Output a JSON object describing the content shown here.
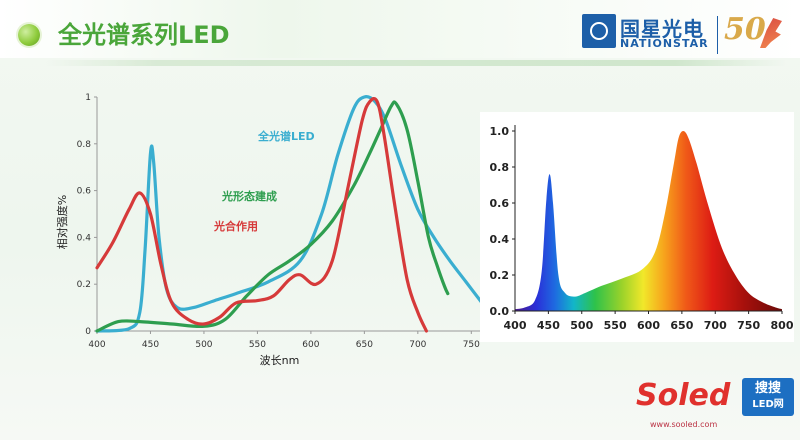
{
  "slide": {
    "title": "全光谱系列LED",
    "logo": {
      "cn": "国星光电",
      "en": "NATIONSTAR",
      "anniversary": "50"
    },
    "watermark": {
      "brand": "Soled",
      "box_line1": "搜搜",
      "box_line2": "LED网",
      "url": "www.sooled.com"
    }
  },
  "colors": {
    "full_spectrum": "#3aaed0",
    "photomorphogenesis": "#2e9e4f",
    "photosynthesis": "#d63a3a",
    "title_green": "#4aa63a",
    "brand_blue": "#1d5fa8"
  },
  "chart_data": [
    {
      "type": "line",
      "title": "",
      "xlabel": "波长nm",
      "ylabel": "相对强度%",
      "xlim": [
        400,
        760
      ],
      "ylim": [
        0,
        1
      ],
      "x_ticks": [
        "400",
        "450",
        "500",
        "550",
        "600",
        "650",
        "700",
        "750"
      ],
      "y_ticks": [
        "0",
        "0.2",
        "0.4",
        "0.6",
        "0.8",
        "1"
      ],
      "grid": false,
      "series": [
        {
          "name": "全光谱LED",
          "color": "#3aaed0",
          "points": [
            [
              400,
              0.0
            ],
            [
              430,
              0.01
            ],
            [
              440,
              0.08
            ],
            [
              445,
              0.35
            ],
            [
              450,
              0.76
            ],
            [
              453,
              0.72
            ],
            [
              458,
              0.4
            ],
            [
              465,
              0.18
            ],
            [
              475,
              0.1
            ],
            [
              490,
              0.1
            ],
            [
              510,
              0.13
            ],
            [
              530,
              0.16
            ],
            [
              560,
              0.21
            ],
            [
              590,
              0.3
            ],
            [
              610,
              0.5
            ],
            [
              625,
              0.75
            ],
            [
              640,
              0.95
            ],
            [
              650,
              1.0
            ],
            [
              660,
              0.98
            ],
            [
              670,
              0.9
            ],
            [
              685,
              0.7
            ],
            [
              700,
              0.52
            ],
            [
              715,
              0.4
            ],
            [
              730,
              0.3
            ],
            [
              745,
              0.21
            ],
            [
              760,
              0.12
            ]
          ]
        },
        {
          "name": "光形态建成",
          "color": "#2e9e4f",
          "points": [
            [
              400,
              0.0
            ],
            [
              420,
              0.04
            ],
            [
              440,
              0.04
            ],
            [
              470,
              0.03
            ],
            [
              500,
              0.02
            ],
            [
              520,
              0.05
            ],
            [
              540,
              0.15
            ],
            [
              560,
              0.24
            ],
            [
              580,
              0.3
            ],
            [
              600,
              0.37
            ],
            [
              620,
              0.47
            ],
            [
              640,
              0.62
            ],
            [
              655,
              0.76
            ],
            [
              665,
              0.86
            ],
            [
              675,
              0.96
            ],
            [
              680,
              0.97
            ],
            [
              690,
              0.86
            ],
            [
              700,
              0.64
            ],
            [
              710,
              0.4
            ],
            [
              718,
              0.28
            ],
            [
              725,
              0.19
            ],
            [
              728,
              0.16
            ]
          ]
        },
        {
          "name": "光合作用",
          "color": "#d63a3a",
          "points": [
            [
              400,
              0.27
            ],
            [
              415,
              0.38
            ],
            [
              430,
              0.52
            ],
            [
              440,
              0.59
            ],
            [
              450,
              0.5
            ],
            [
              460,
              0.28
            ],
            [
              470,
              0.12
            ],
            [
              485,
              0.05
            ],
            [
              500,
              0.03
            ],
            [
              515,
              0.06
            ],
            [
              530,
              0.12
            ],
            [
              550,
              0.13
            ],
            [
              565,
              0.15
            ],
            [
              580,
              0.22
            ],
            [
              590,
              0.24
            ],
            [
              605,
              0.2
            ],
            [
              620,
              0.3
            ],
            [
              635,
              0.62
            ],
            [
              648,
              0.9
            ],
            [
              655,
              0.98
            ],
            [
              662,
              0.98
            ],
            [
              668,
              0.85
            ],
            [
              678,
              0.55
            ],
            [
              690,
              0.22
            ],
            [
              700,
              0.08
            ],
            [
              708,
              0.0
            ]
          ]
        }
      ]
    },
    {
      "type": "area",
      "title": "",
      "xlim": [
        400,
        800
      ],
      "ylim": [
        0,
        1.0
      ],
      "x_ticks": [
        "400",
        "450",
        "500",
        "550",
        "600",
        "650",
        "700",
        "750",
        "800"
      ],
      "y_ticks": [
        "0.0",
        "0.2",
        "0.4",
        "0.6",
        "0.8",
        "1.0"
      ],
      "grid": false,
      "fill": "visible-spectrum gradient",
      "points": [
        [
          400,
          0.01
        ],
        [
          415,
          0.02
        ],
        [
          430,
          0.06
        ],
        [
          440,
          0.22
        ],
        [
          447,
          0.62
        ],
        [
          452,
          0.76
        ],
        [
          457,
          0.6
        ],
        [
          465,
          0.2
        ],
        [
          475,
          0.1
        ],
        [
          490,
          0.08
        ],
        [
          505,
          0.1
        ],
        [
          530,
          0.14
        ],
        [
          560,
          0.18
        ],
        [
          590,
          0.23
        ],
        [
          610,
          0.33
        ],
        [
          625,
          0.55
        ],
        [
          638,
          0.82
        ],
        [
          645,
          0.96
        ],
        [
          652,
          1.0
        ],
        [
          660,
          0.96
        ],
        [
          672,
          0.82
        ],
        [
          690,
          0.58
        ],
        [
          710,
          0.35
        ],
        [
          730,
          0.2
        ],
        [
          750,
          0.1
        ],
        [
          770,
          0.05
        ],
        [
          790,
          0.02
        ],
        [
          800,
          0.01
        ]
      ]
    }
  ]
}
